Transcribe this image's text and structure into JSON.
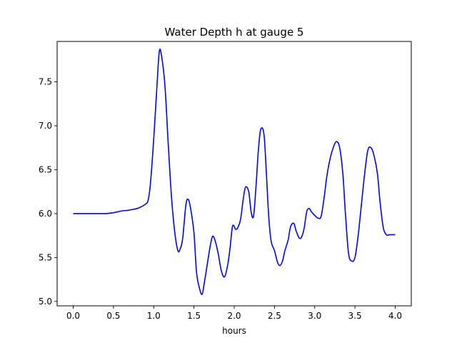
{
  "chart_data": {
    "type": "line",
    "title": "Water Depth h at gauge 5",
    "xlabel": "hours",
    "ylabel": "",
    "xlim": [
      -0.2,
      4.2
    ],
    "ylim": [
      4.95,
      7.96
    ],
    "xticks": [
      0.0,
      0.5,
      1.0,
      1.5,
      2.0,
      2.5,
      3.0,
      3.5,
      4.0
    ],
    "xtick_labels": [
      "0.0",
      "0.5",
      "1.0",
      "1.5",
      "2.0",
      "2.5",
      "3.0",
      "3.5",
      "4.0"
    ],
    "yticks": [
      5.0,
      5.5,
      6.0,
      6.5,
      7.0,
      7.5
    ],
    "ytick_labels": [
      "5.0",
      "5.5",
      "6.0",
      "6.5",
      "7.0",
      "7.5"
    ],
    "grid": false,
    "series": [
      {
        "color": "#0000ff",
        "x": [
          0.0,
          0.2,
          0.4,
          0.45,
          0.5,
          0.6,
          0.7,
          0.8,
          0.85,
          0.9,
          0.93,
          0.96,
          1.0,
          1.04,
          1.07,
          1.1,
          1.14,
          1.18,
          1.22,
          1.26,
          1.3,
          1.33,
          1.36,
          1.4,
          1.43,
          1.46,
          1.5,
          1.53,
          1.56,
          1.6,
          1.63,
          1.67,
          1.7,
          1.73,
          1.76,
          1.8,
          1.84,
          1.88,
          1.92,
          1.95,
          1.98,
          2.02,
          2.05,
          2.08,
          2.11,
          2.14,
          2.18,
          2.21,
          2.24,
          2.27,
          2.3,
          2.33,
          2.37,
          2.4,
          2.43,
          2.46,
          2.5,
          2.54,
          2.57,
          2.6,
          2.63,
          2.67,
          2.7,
          2.74,
          2.77,
          2.81,
          2.84,
          2.87,
          2.9,
          2.93,
          2.96,
          3.0,
          3.04,
          3.08,
          3.12,
          3.15,
          3.19,
          3.23,
          3.27,
          3.31,
          3.35,
          3.38,
          3.42,
          3.46,
          3.5,
          3.54,
          3.58,
          3.62,
          3.66,
          3.7,
          3.74,
          3.78,
          3.81,
          3.85,
          3.89,
          3.93,
          3.97,
          4.0
        ],
        "y": [
          6.0,
          6.0,
          6.0,
          6.005,
          6.01,
          6.03,
          6.04,
          6.06,
          6.08,
          6.11,
          6.15,
          6.35,
          6.85,
          7.45,
          7.85,
          7.78,
          7.45,
          6.8,
          6.2,
          5.8,
          5.58,
          5.6,
          5.72,
          6.1,
          6.16,
          6.05,
          5.78,
          5.35,
          5.18,
          5.08,
          5.22,
          5.45,
          5.62,
          5.74,
          5.7,
          5.55,
          5.35,
          5.28,
          5.42,
          5.62,
          5.86,
          5.82,
          5.85,
          5.94,
          6.15,
          6.3,
          6.25,
          6.02,
          5.97,
          6.3,
          6.72,
          6.96,
          6.9,
          6.45,
          5.95,
          5.68,
          5.58,
          5.44,
          5.41,
          5.46,
          5.58,
          5.7,
          5.85,
          5.89,
          5.8,
          5.72,
          5.74,
          5.84,
          6.02,
          6.06,
          6.02,
          5.98,
          5.95,
          5.97,
          6.2,
          6.42,
          6.62,
          6.75,
          6.82,
          6.75,
          6.45,
          6.02,
          5.55,
          5.46,
          5.5,
          5.75,
          6.1,
          6.45,
          6.72,
          6.75,
          6.65,
          6.45,
          6.15,
          5.85,
          5.76,
          5.76,
          5.76,
          5.76
        ]
      }
    ]
  }
}
